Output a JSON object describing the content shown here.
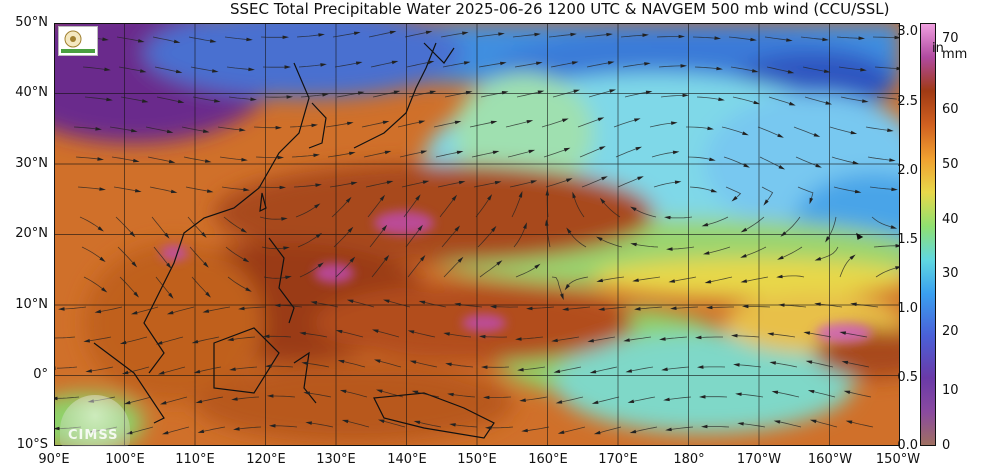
{
  "title": "SSEC Total Precipitable Water  2025-06-26 1200 UTC & NAVGEM 500 mb wind (CCU/SSL)",
  "colors": {
    "purple": "#6a2a8c",
    "magenta": "#c04bb5",
    "blue": "#2a7de1",
    "cyan": "#7fd8e8",
    "green": "#8fd36a",
    "yellow": "#e8d84a",
    "orange": "#e8862a",
    "brown": "#9a3a14",
    "pink": "#f080d8"
  },
  "lat_labels": [
    "50°N",
    "40°N",
    "30°N",
    "20°N",
    "10°N",
    "0°",
    "10°S"
  ],
  "lon_labels": [
    "90°E",
    "100°E",
    "110°E",
    "120°E",
    "130°E",
    "140°E",
    "150°E",
    "160°E",
    "170°E",
    "180°",
    "170°W",
    "160°W",
    "150°W"
  ],
  "colorbar": {
    "inch_unit": "in",
    "mm_unit": "mm",
    "inch_ticks": [
      "3.0",
      "2.5",
      "2.0",
      "1.5",
      "1.0",
      "0.5",
      "0.0"
    ],
    "mm_ticks": [
      "70",
      "60",
      "50",
      "40",
      "30",
      "20",
      "10",
      "0"
    ]
  },
  "logo_text": "CIMSS"
}
